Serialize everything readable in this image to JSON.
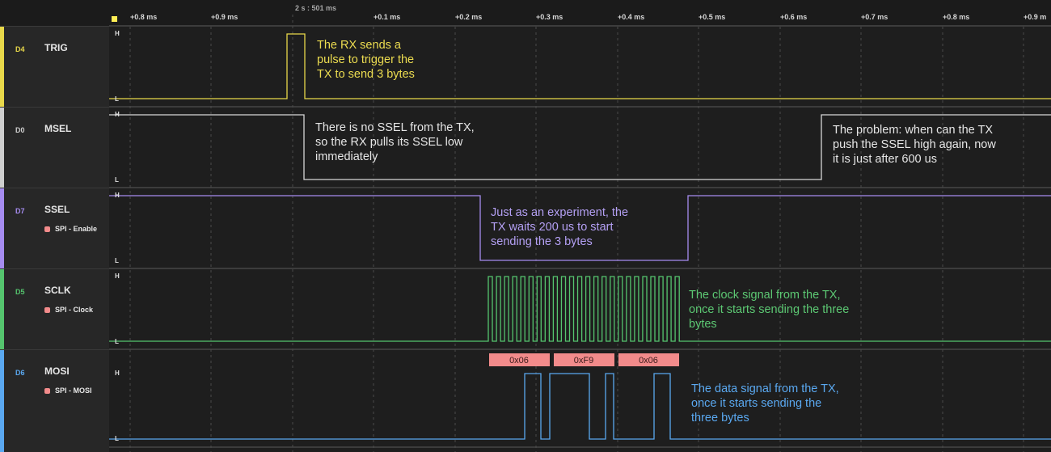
{
  "ruler": {
    "reference": "2 s : 501 ms",
    "ticks": [
      "+0.8 ms",
      "+0.9 ms",
      "+0.1 ms",
      "+0.2 ms",
      "+0.3 ms",
      "+0.4 ms",
      "+0.5 ms",
      "+0.6 ms",
      "+0.7 ms",
      "+0.8 ms",
      "+0.9 m"
    ]
  },
  "level_high": "H",
  "level_low": "L",
  "channels": [
    {
      "id": "D4",
      "name": "TRIG",
      "color": "#e8d84a",
      "analyzer": ""
    },
    {
      "id": "D0",
      "name": "MSEL",
      "color": "#cfcfcf",
      "analyzer": ""
    },
    {
      "id": "D7",
      "name": "SSEL",
      "color": "#a68cf0",
      "analyzer": "SPI - Enable"
    },
    {
      "id": "D5",
      "name": "SCLK",
      "color": "#55c46e",
      "analyzer": "SPI - Clock"
    },
    {
      "id": "D6",
      "name": "MOSI",
      "color": "#5aa8f0",
      "analyzer": "SPI - MOSI"
    }
  ],
  "decoded_bytes": [
    "0x06",
    "0xF9",
    "0x06"
  ],
  "annotations": {
    "trig": [
      "The RX sends a",
      "pulse to trigger the",
      "TX to send 3 bytes"
    ],
    "msel_left": [
      "There is no SSEL from the TX,",
      "so the RX pulls its SSEL low",
      "immediately"
    ],
    "msel_right": [
      "The problem: when can the TX",
      "push the SSEL high again, now",
      "it is just after 600 us"
    ],
    "ssel": [
      "Just as an experiment, the",
      "TX waits 200 us to start",
      "sending the 3 bytes"
    ],
    "sclk": [
      "The clock signal from the TX,",
      "once it starts sending the three",
      "bytes"
    ],
    "mosi": [
      "The data signal from the TX,",
      "once it  starts sending the",
      "three bytes"
    ]
  }
}
